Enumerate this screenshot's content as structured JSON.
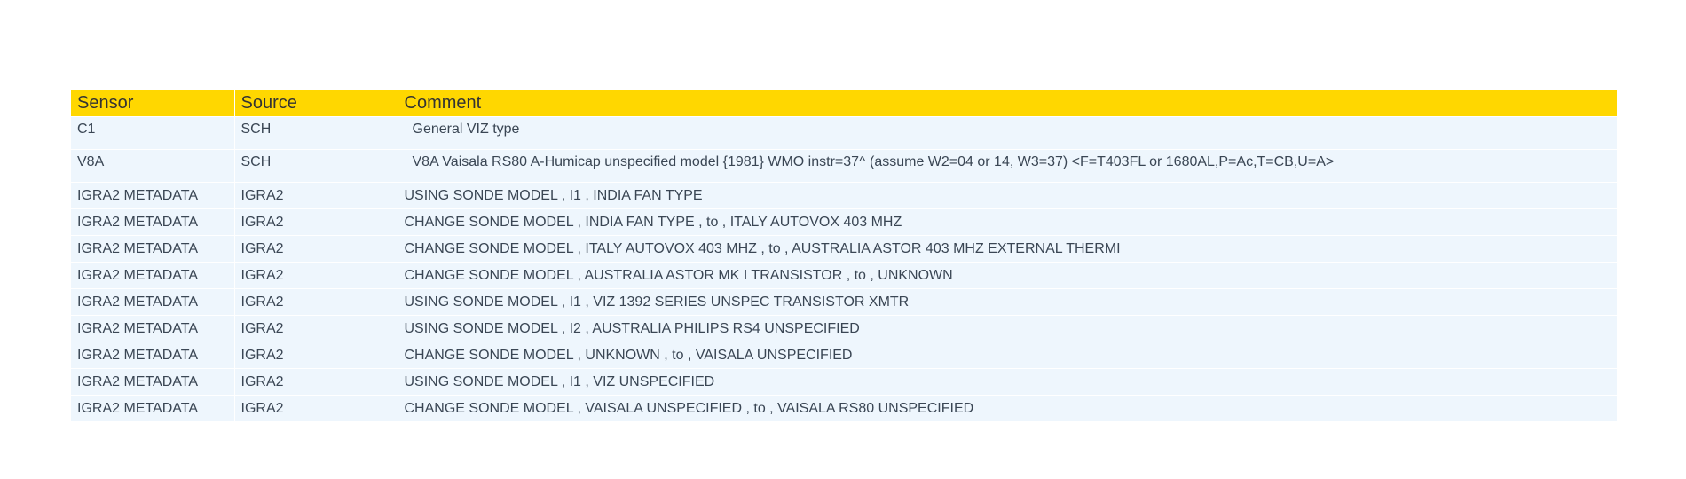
{
  "table": {
    "headers": [
      "Sensor",
      "Source",
      "Comment"
    ],
    "rows": [
      {
        "sensor": "C1",
        "source": "SCH",
        "comment": "General VIZ type"
      },
      {
        "sensor": "V8A",
        "source": "SCH",
        "comment": "V8A Vaisala RS80 A-Humicap unspecified model {1981} WMO instr=37^ (assume W2=04 or 14, W3=37) <F=T403FL or 1680AL,P=Ac,T=CB,U=A>"
      },
      {
        "sensor": "IGRA2 METADATA",
        "source": "IGRA2",
        "comment": "USING SONDE MODEL , I1 , INDIA FAN TYPE"
      },
      {
        "sensor": "IGRA2 METADATA",
        "source": "IGRA2",
        "comment": "CHANGE SONDE MODEL , INDIA FAN TYPE , to , ITALY AUTOVOX 403 MHZ"
      },
      {
        "sensor": "IGRA2 METADATA",
        "source": "IGRA2",
        "comment": "CHANGE SONDE MODEL , ITALY AUTOVOX 403 MHZ , to , AUSTRALIA ASTOR 403 MHZ EXTERNAL THERMI"
      },
      {
        "sensor": "IGRA2 METADATA",
        "source": "IGRA2",
        "comment": "CHANGE SONDE MODEL , AUSTRALIA ASTOR MK I TRANSISTOR , to , UNKNOWN"
      },
      {
        "sensor": "IGRA2 METADATA",
        "source": "IGRA2",
        "comment": "USING SONDE MODEL , I1 , VIZ 1392 SERIES UNSPEC TRANSISTOR XMTR"
      },
      {
        "sensor": "IGRA2 METADATA",
        "source": "IGRA2",
        "comment": "USING SONDE MODEL , I2 , AUSTRALIA PHILIPS RS4 UNSPECIFIED"
      },
      {
        "sensor": "IGRA2 METADATA",
        "source": "IGRA2",
        "comment": "CHANGE SONDE MODEL , UNKNOWN , to , VAISALA UNSPECIFIED"
      },
      {
        "sensor": "IGRA2 METADATA",
        "source": "IGRA2",
        "comment": "USING SONDE MODEL , I1 , VIZ UNSPECIFIED"
      },
      {
        "sensor": "IGRA2 METADATA",
        "source": "IGRA2",
        "comment": "CHANGE SONDE MODEL , VAISALA UNSPECIFIED , to , VAISALA RS80 UNSPECIFIED"
      }
    ]
  },
  "colors": {
    "header_bg": "#ffd700",
    "row_bg": "#eef6fd",
    "text": "#3a4654"
  }
}
